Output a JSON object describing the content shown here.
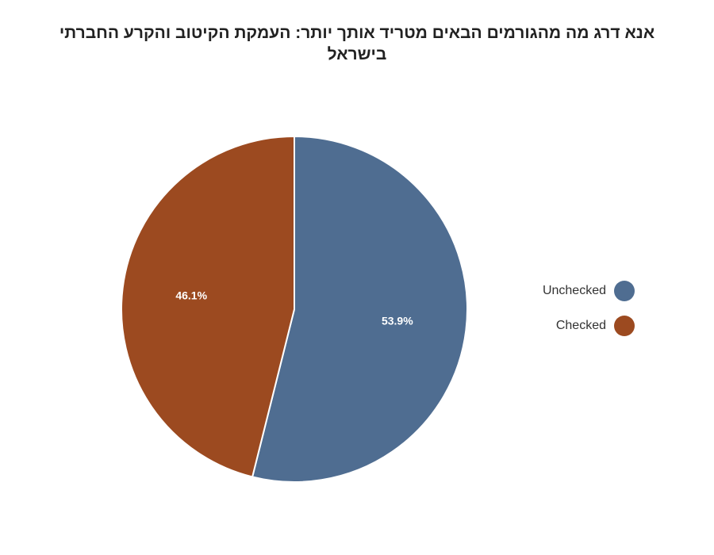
{
  "chart_data": {
    "type": "pie",
    "title": "אנא דרג מה מהגורמים הבאים מטריד אותך יותר:  העמקת הקיטוב והקרע החברתי בישראל",
    "categories": [
      "Unchecked",
      "Checked"
    ],
    "values": [
      53.9,
      46.1
    ],
    "labels": [
      "53.9%",
      "46.1%"
    ],
    "colors": [
      "#4f6d91",
      "#9c4a20"
    ],
    "legend_position": "right"
  },
  "legend": [
    {
      "label": "Unchecked",
      "color": "#4f6d91"
    },
    {
      "label": "Checked",
      "color": "#9c4a20"
    }
  ]
}
